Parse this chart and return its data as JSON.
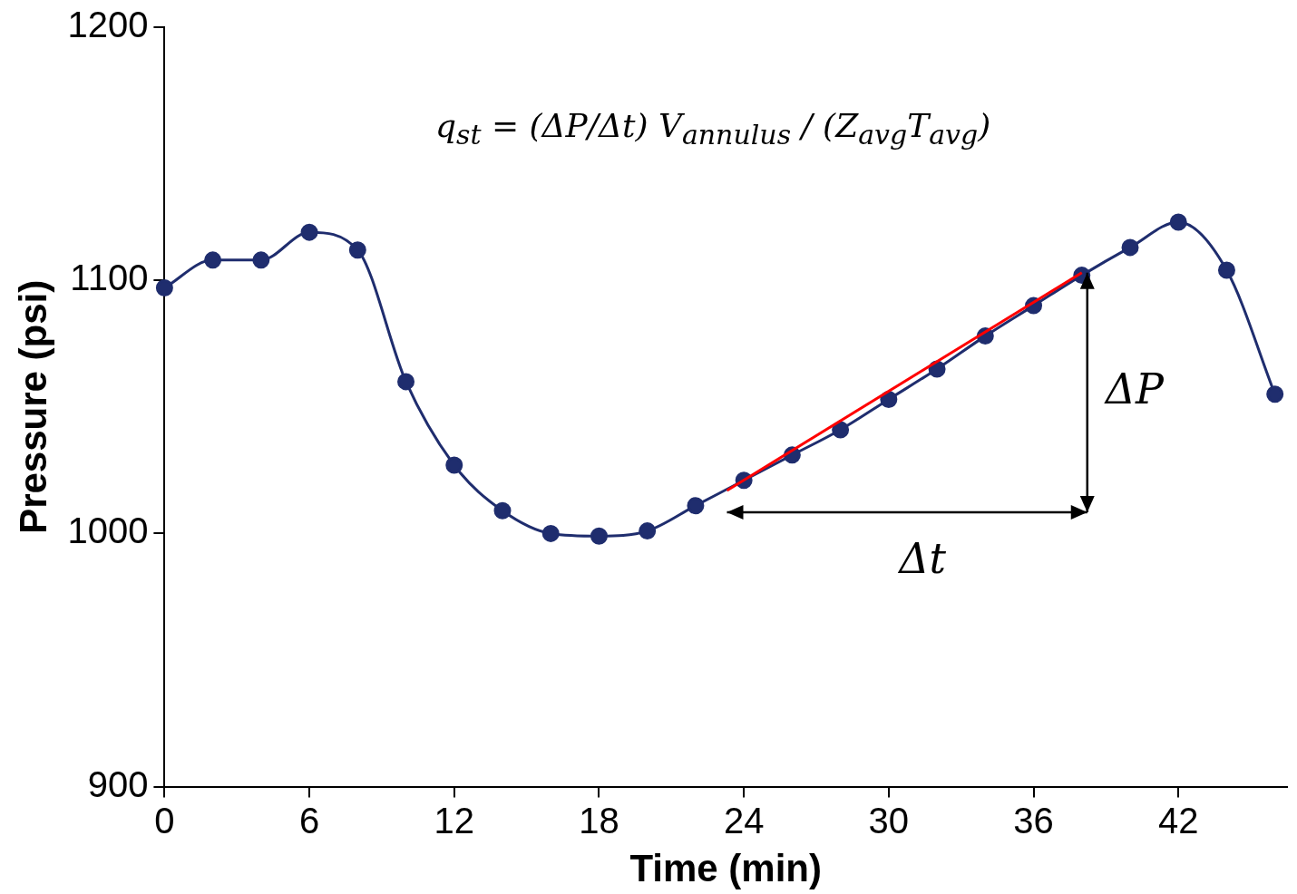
{
  "chart_data": {
    "type": "line",
    "xlabel": "Time (min)",
    "ylabel": "Pressure (psi)",
    "x": [
      0,
      2,
      4,
      6,
      8,
      10,
      12,
      14,
      16,
      18,
      20,
      22,
      24,
      26,
      28,
      30,
      32,
      34,
      36,
      38,
      40,
      42,
      44,
      46
    ],
    "series": [
      {
        "color": "#1f2d6e",
        "values": [
          1097,
          1108,
          1108,
          1119,
          1112,
          1060,
          1027,
          1009,
          1000,
          999,
          1001,
          1011,
          1021,
          1031,
          1041,
          1053,
          1065,
          1078,
          1090,
          1102,
          1113,
          1123,
          1104,
          1055
        ]
      },
      {
        "type": "line",
        "color": "#ff0000",
        "marker": "none",
        "x": [
          23.3,
          38
        ],
        "values": [
          1017,
          1103
        ]
      }
    ],
    "xlim": [
      0,
      46.5
    ],
    "xticks": [
      0,
      6,
      12,
      18,
      24,
      30,
      36,
      42
    ],
    "ylim": [
      900,
      1200
    ],
    "yticks": [
      900,
      1000,
      1100,
      1200
    ],
    "grid": false,
    "legend": false,
    "marker": "circle",
    "line_style": "solid",
    "annotations": [
      "q$_{st}$ = (ΔP/Δt) V$_{annulus}$ / (Z$_{avg}$T$_{avg}$)",
      "ΔP",
      "Δt"
    ]
  }
}
